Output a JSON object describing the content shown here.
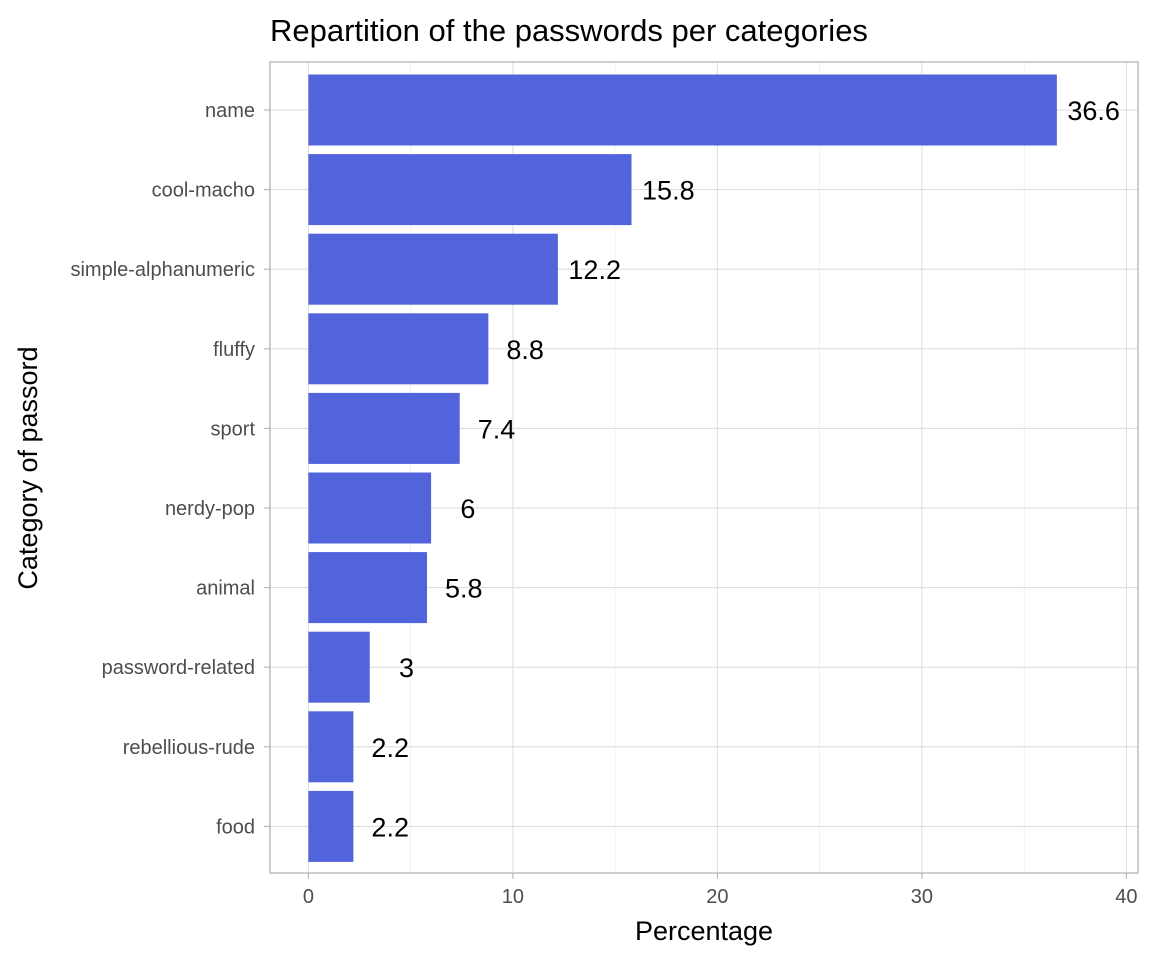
{
  "chart_data": {
    "type": "bar",
    "orientation": "horizontal",
    "title": "Repartition of the passwords per categories",
    "xlabel": "Percentage",
    "ylabel": "Category of passord",
    "categories": [
      "name",
      "cool-macho",
      "simple-alphanumeric",
      "fluffy",
      "sport",
      "nerdy-pop",
      "animal",
      "password-related",
      "rebellious-rude",
      "food"
    ],
    "values": [
      36.6,
      15.8,
      12.2,
      8.8,
      7.4,
      6,
      5.8,
      3,
      2.2,
      2.2
    ],
    "data_labels": [
      "36.6",
      "15.8",
      "12.2",
      "8.8",
      "7.4",
      "6",
      "5.8",
      "3",
      "2.2",
      "2.2"
    ],
    "xlim": [
      -1.83,
      40.6
    ],
    "xticks": [
      0,
      10,
      20,
      30,
      40
    ],
    "xtick_labels": [
      "0",
      "10",
      "20",
      "30",
      "40"
    ],
    "grid": true,
    "legend": "none",
    "bar_color": "#5164dc"
  }
}
